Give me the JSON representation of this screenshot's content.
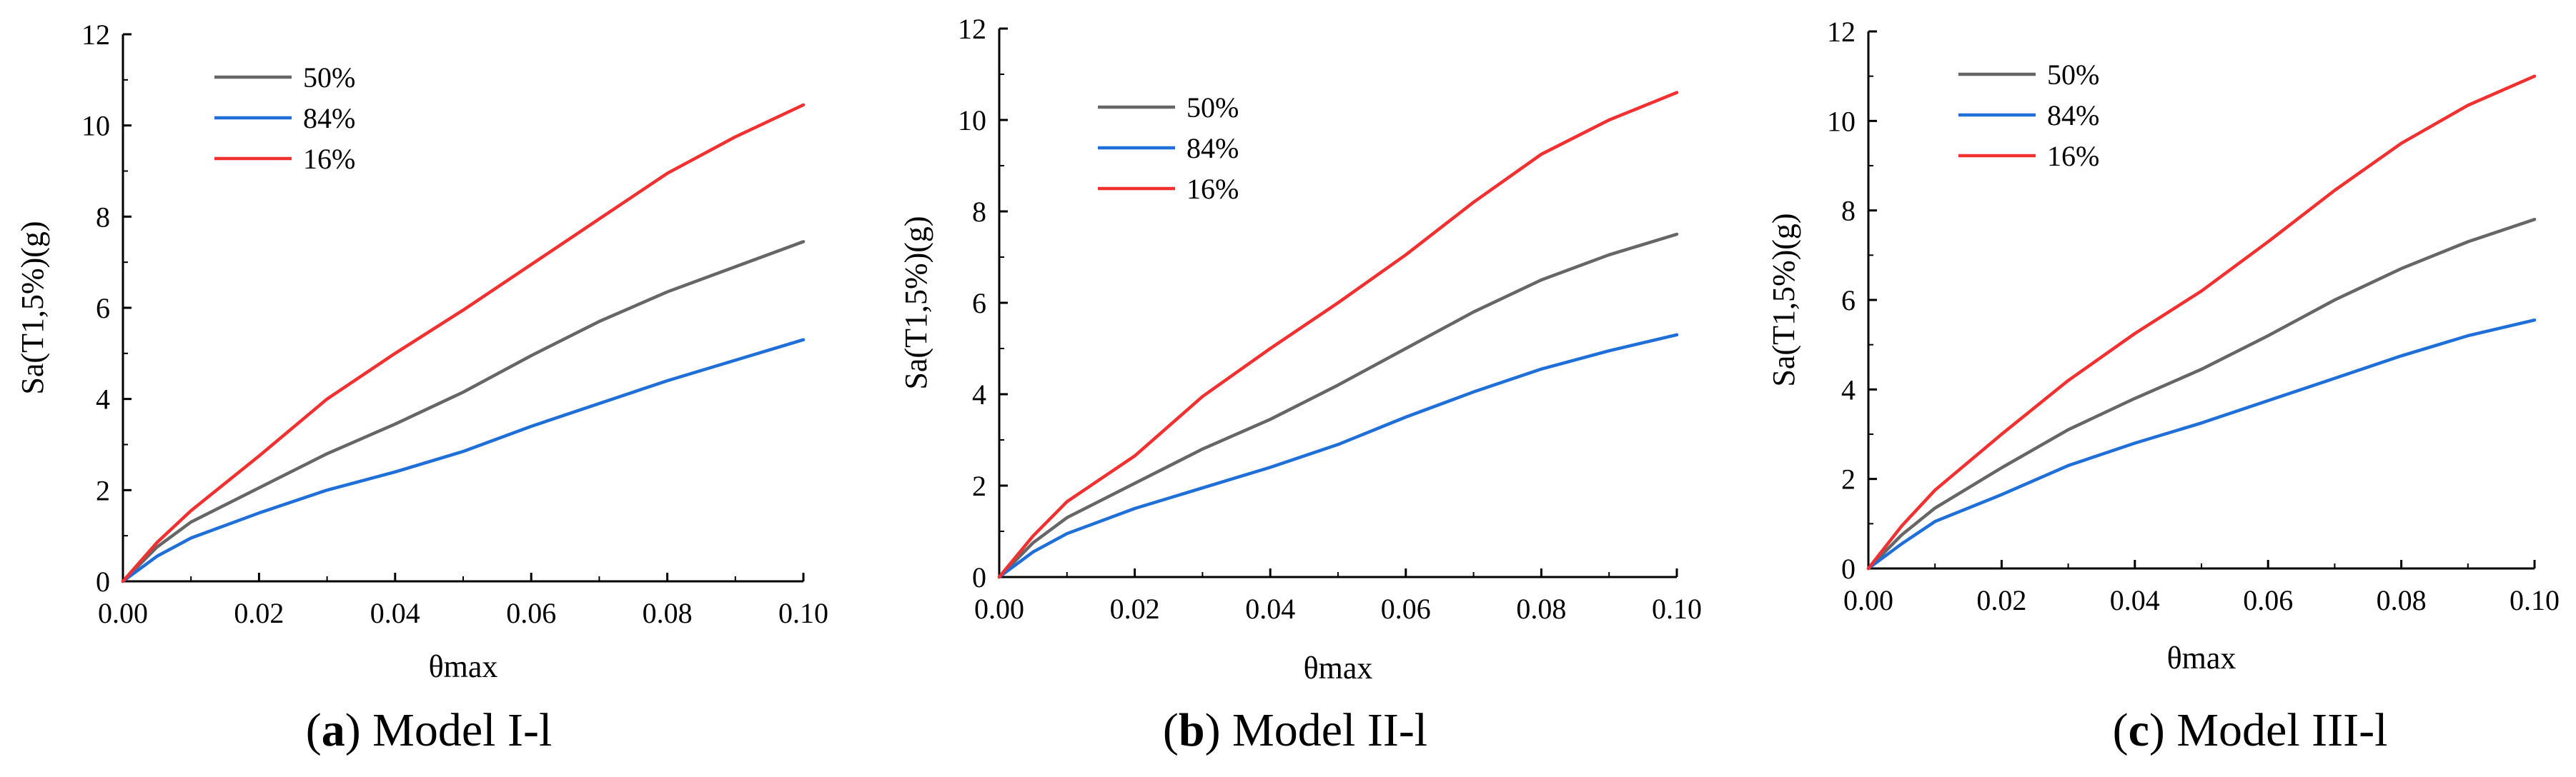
{
  "chart_data": [
    {
      "type": "line",
      "panel": "a",
      "caption_letter": "a",
      "caption_text": "Model I-l",
      "xlabel": "θmax",
      "ylabel": "Sa(T1,5%)(g)",
      "xlim": [
        0,
        0.1
      ],
      "ylim": [
        0,
        12
      ],
      "xticks": [
        "0.00",
        "0.02",
        "0.04",
        "0.06",
        "0.08",
        "0.10"
      ],
      "yticks": [
        "0",
        "2",
        "4",
        "6",
        "8",
        "10",
        "12"
      ],
      "x": [
        0,
        0.005,
        0.01,
        0.02,
        0.03,
        0.04,
        0.05,
        0.06,
        0.07,
        0.08,
        0.09,
        0.1
      ],
      "series": [
        {
          "name": "50%",
          "color": "#666666",
          "values": [
            0,
            0.75,
            1.3,
            2.05,
            2.8,
            3.45,
            4.15,
            4.95,
            5.7,
            6.35,
            6.9,
            7.45
          ]
        },
        {
          "name": "84%",
          "color": "#1f6fd8",
          "values": [
            0,
            0.55,
            0.95,
            1.5,
            2.0,
            2.4,
            2.85,
            3.4,
            3.9,
            4.4,
            4.85,
            5.3
          ]
        },
        {
          "name": "16%",
          "color": "#f23030",
          "values": [
            0,
            0.85,
            1.55,
            2.75,
            4.0,
            5.0,
            5.95,
            6.95,
            7.95,
            8.95,
            9.75,
            10.45
          ]
        }
      ],
      "legend_position": "top-left"
    },
    {
      "type": "line",
      "panel": "b",
      "caption_letter": "b",
      "caption_text": "Model II-l",
      "xlabel": "θmax",
      "ylabel": "Sa(T1,5%)(g)",
      "xlim": [
        0,
        0.1
      ],
      "ylim": [
        0,
        12
      ],
      "xticks": [
        "0.00",
        "0.02",
        "0.04",
        "0.06",
        "0.08",
        "0.10"
      ],
      "yticks": [
        "0",
        "2",
        "4",
        "6",
        "8",
        "10",
        "12"
      ],
      "x": [
        0,
        0.005,
        0.01,
        0.02,
        0.03,
        0.04,
        0.05,
        0.06,
        0.07,
        0.08,
        0.09,
        0.1
      ],
      "series": [
        {
          "name": "50%",
          "color": "#666666",
          "values": [
            0,
            0.75,
            1.3,
            2.05,
            2.8,
            3.45,
            4.2,
            5.0,
            5.8,
            6.5,
            7.05,
            7.5
          ]
        },
        {
          "name": "84%",
          "color": "#1f6fd8",
          "values": [
            0,
            0.55,
            0.95,
            1.5,
            1.95,
            2.4,
            2.9,
            3.5,
            4.05,
            4.55,
            4.95,
            5.3
          ]
        },
        {
          "name": "16%",
          "color": "#f23030",
          "values": [
            0,
            0.9,
            1.65,
            2.65,
            3.95,
            5.0,
            6.0,
            7.05,
            8.2,
            9.25,
            10.0,
            10.6
          ]
        }
      ],
      "legend_position": "top-left"
    },
    {
      "type": "line",
      "panel": "c",
      "caption_letter": "c",
      "caption_text": "Model III-l",
      "xlabel": "θmax",
      "ylabel": "Sa(T1,5%)(g)",
      "xlim": [
        0,
        0.1
      ],
      "ylim": [
        0,
        12
      ],
      "xticks": [
        "0.00",
        "0.02",
        "0.04",
        "0.06",
        "0.08",
        "0.10"
      ],
      "yticks": [
        "0",
        "2",
        "4",
        "6",
        "8",
        "10",
        "12"
      ],
      "x": [
        0,
        0.005,
        0.01,
        0.02,
        0.03,
        0.04,
        0.05,
        0.06,
        0.07,
        0.08,
        0.09,
        0.1
      ],
      "series": [
        {
          "name": "50%",
          "color": "#666666",
          "values": [
            0,
            0.75,
            1.35,
            2.25,
            3.1,
            3.8,
            4.45,
            5.2,
            6.0,
            6.7,
            7.3,
            7.8
          ]
        },
        {
          "name": "84%",
          "color": "#1f6fd8",
          "values": [
            0,
            0.55,
            1.05,
            1.65,
            2.3,
            2.8,
            3.25,
            3.75,
            4.25,
            4.75,
            5.2,
            5.55
          ]
        },
        {
          "name": "16%",
          "color": "#f23030",
          "values": [
            0,
            0.95,
            1.75,
            3.0,
            4.2,
            5.25,
            6.2,
            7.3,
            8.45,
            9.5,
            10.35,
            11.0
          ]
        }
      ],
      "legend_position": "top-left"
    }
  ]
}
